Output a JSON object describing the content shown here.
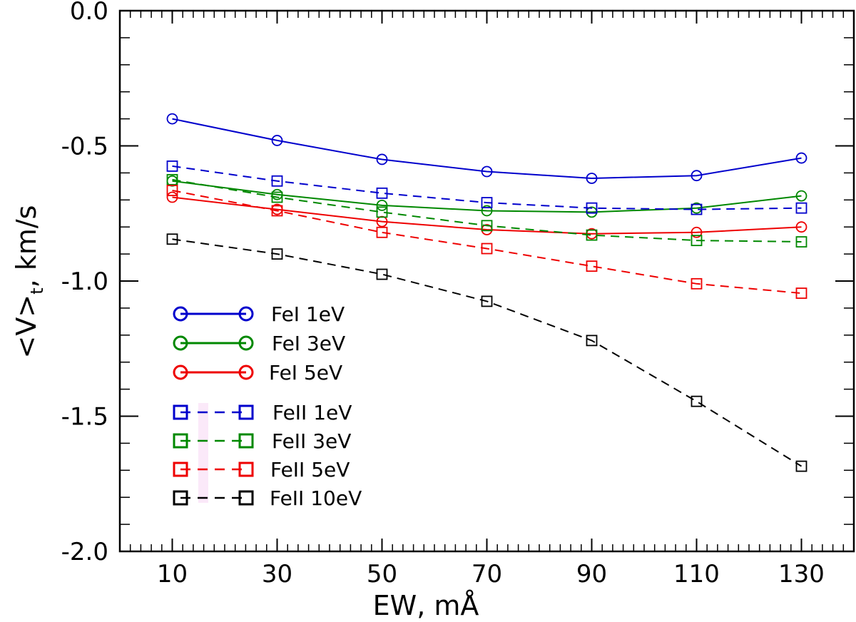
{
  "chart_data": {
    "type": "line",
    "xlabel": "EW, mÅ",
    "ylabel_main": "<V>",
    "ylabel_sub": "t",
    "ylabel_suffix": ", km/s",
    "xlim": [
      0,
      140
    ],
    "ylim": [
      -2.0,
      0.0
    ],
    "x_ticks": [
      10,
      30,
      50,
      70,
      90,
      110,
      130
    ],
    "x_tick_labels": [
      "10",
      "30",
      "50",
      "70",
      "90",
      "110",
      "130"
    ],
    "y_ticks": [
      0.0,
      -0.5,
      -1.0,
      -1.5,
      -2.0
    ],
    "y_tick_labels": [
      "0.0",
      "-0.5",
      "-1.0",
      "-1.5",
      "-2.0"
    ],
    "x": [
      10,
      30,
      50,
      70,
      90,
      110,
      130
    ],
    "grid": false,
    "legend_position": "bottom-left",
    "series": [
      {
        "name": "FeI 1eV",
        "color": "#0000cc",
        "marker": "circle",
        "dash": false,
        "values": [
          -0.4,
          -0.48,
          -0.55,
          -0.595,
          -0.62,
          -0.61,
          -0.545
        ]
      },
      {
        "name": "FeI 3eV",
        "color": "#008800",
        "marker": "circle",
        "dash": false,
        "values": [
          -0.63,
          -0.68,
          -0.72,
          -0.74,
          -0.745,
          -0.73,
          -0.685
        ]
      },
      {
        "name": "FeI 5eV",
        "color": "#ee0000",
        "marker": "circle",
        "dash": false,
        "values": [
          -0.69,
          -0.735,
          -0.78,
          -0.81,
          -0.825,
          -0.82,
          -0.8
        ]
      },
      {
        "name": "FeII 1eV",
        "color": "#0000cc",
        "marker": "square",
        "dash": true,
        "values": [
          -0.575,
          -0.63,
          -0.675,
          -0.71,
          -0.73,
          -0.735,
          -0.73
        ]
      },
      {
        "name": "FeII 3eV",
        "color": "#008800",
        "marker": "square",
        "dash": true,
        "values": [
          -0.625,
          -0.69,
          -0.745,
          -0.795,
          -0.83,
          -0.85,
          -0.855
        ]
      },
      {
        "name": "FeII 5eV",
        "color": "#ee0000",
        "marker": "square",
        "dash": true,
        "values": [
          -0.665,
          -0.74,
          -0.82,
          -0.88,
          -0.945,
          -1.01,
          -1.045
        ]
      },
      {
        "name": "FeII 10eV",
        "color": "#000000",
        "marker": "square",
        "dash": true,
        "values": [
          -0.845,
          -0.9,
          -0.975,
          -1.075,
          -1.22,
          -1.445,
          -1.685
        ]
      }
    ]
  }
}
